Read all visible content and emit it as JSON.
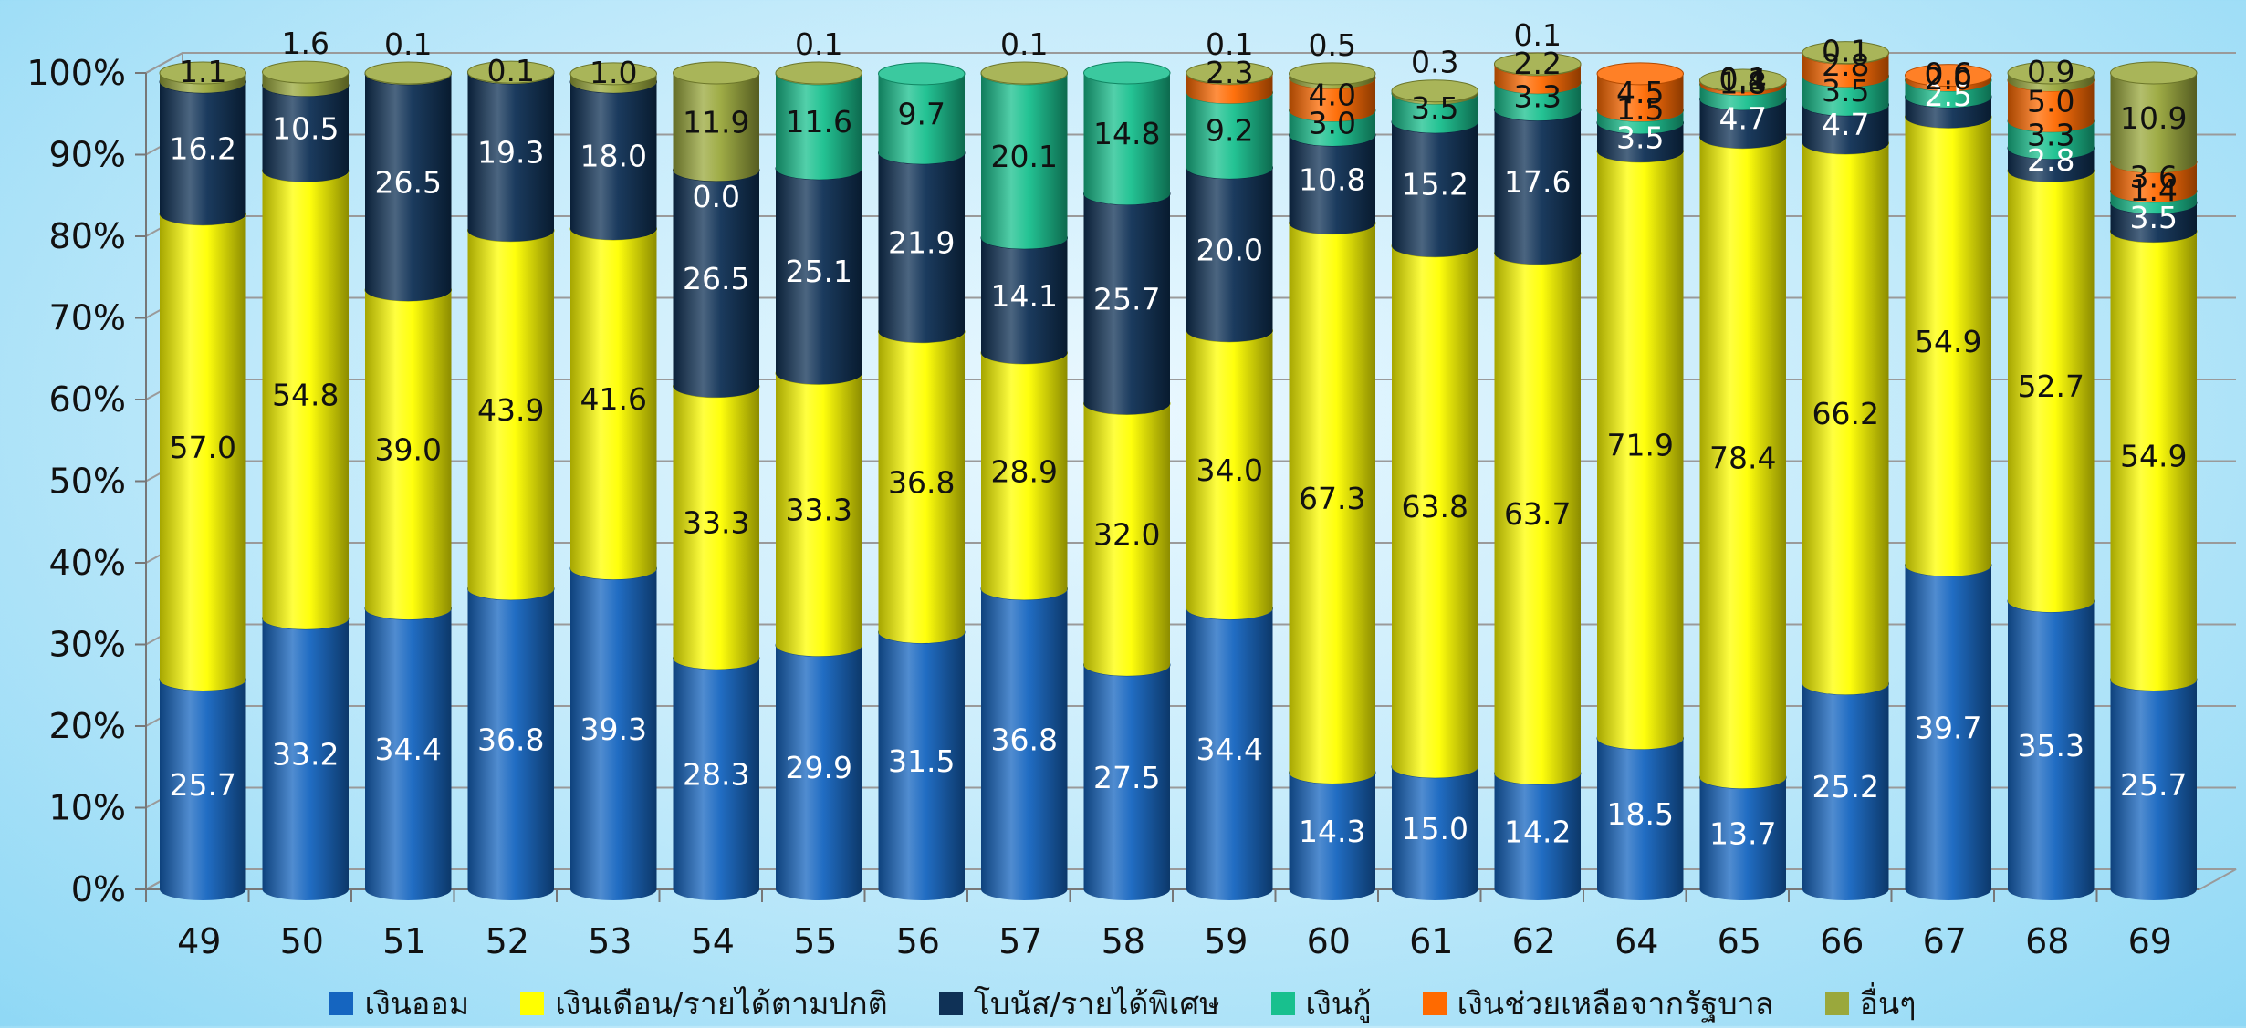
{
  "chart_data": {
    "type": "bar",
    "stacked": true,
    "title": "",
    "xlabel": "",
    "ylabel": "",
    "ylim": [
      0,
      100
    ],
    "y_ticks": [
      "0%",
      "10%",
      "20%",
      "30%",
      "40%",
      "50%",
      "60%",
      "70%",
      "80%",
      "90%",
      "100%"
    ],
    "categories": [
      "49",
      "50",
      "51",
      "52",
      "53",
      "54",
      "55",
      "56",
      "57",
      "58",
      "59",
      "60",
      "61",
      "62",
      "64",
      "65",
      "66",
      "67",
      "68",
      "69"
    ],
    "series": [
      {
        "name": "เงินออม",
        "color": "#1565c0",
        "label_color": "#ffffff",
        "values": [
          25.7,
          33.2,
          34.4,
          36.8,
          39.3,
          28.3,
          29.9,
          31.5,
          36.8,
          27.5,
          34.4,
          14.3,
          15.0,
          14.2,
          18.5,
          13.7,
          25.2,
          39.7,
          35.3,
          25.7
        ]
      },
      {
        "name": "เงินเดือน/รายได้ตามปกติ",
        "color": "#ffff00",
        "label_color": "#111111",
        "values": [
          57.0,
          54.8,
          39.0,
          43.9,
          41.6,
          33.3,
          33.3,
          36.8,
          28.9,
          32.0,
          34.0,
          67.3,
          63.8,
          63.7,
          71.9,
          78.4,
          66.2,
          54.9,
          52.7,
          54.9
        ]
      },
      {
        "name": "โบนัส/รายได้พิเศษ",
        "color": "#0f3156",
        "label_color": "#ffffff",
        "values": [
          16.2,
          10.5,
          26.5,
          19.3,
          18.0,
          26.5,
          25.1,
          21.9,
          14.1,
          25.7,
          20.0,
          10.8,
          15.2,
          17.6,
          3.5,
          4.7,
          4.7,
          2.5,
          2.8,
          3.5
        ]
      },
      {
        "name": "เงินกู้",
        "color": "#18c08e",
        "label_color": "#111111",
        "values": [
          0.0,
          0.0,
          0.0,
          0.0,
          0.0,
          0.0,
          11.6,
          9.7,
          20.1,
          14.8,
          9.2,
          3.0,
          3.5,
          3.3,
          1.5,
          1.8,
          3.5,
          2.0,
          3.3,
          1.4
        ]
      },
      {
        "name": "เงินช่วยเหลือจากรัฐบาล",
        "color": "#ff6a00",
        "label_color": "#111111",
        "values": [
          0.0,
          0.0,
          0.0,
          0.0,
          0.0,
          0.0,
          0.0,
          0.0,
          0.0,
          0.0,
          2.3,
          4.0,
          0.0,
          2.2,
          4.5,
          0.4,
          2.8,
          0.6,
          5.0,
          3.6
        ]
      },
      {
        "name": "อื่นๆ",
        "color": "#9aa83c",
        "label_color": "#111111",
        "values": [
          1.1,
          1.6,
          0.1,
          0.1,
          1.0,
          11.9,
          0.1,
          0.0,
          0.1,
          0.0,
          0.1,
          0.5,
          0.3,
          0.1,
          0.0,
          0.1,
          0.1,
          0.0,
          0.9,
          10.9
        ]
      }
    ],
    "data_labels": [
      {
        "cat": 0,
        "text": "25.7",
        "series": 0
      },
      {
        "cat": 0,
        "text": "57.0",
        "series": 1
      },
      {
        "cat": 0,
        "text": "16.2",
        "series": 2
      },
      {
        "cat": 0,
        "text": "1.1",
        "series": 5
      },
      {
        "cat": 1,
        "text": "33.2",
        "series": 0
      },
      {
        "cat": 1,
        "text": "54.8",
        "series": 1
      },
      {
        "cat": 1,
        "text": "10.5",
        "series": 2
      },
      {
        "cat": 1,
        "text": "1.6",
        "series": 5,
        "above": true
      },
      {
        "cat": 2,
        "text": "34.4",
        "series": 0
      },
      {
        "cat": 2,
        "text": "39.0",
        "series": 1
      },
      {
        "cat": 2,
        "text": "26.5",
        "series": 2
      },
      {
        "cat": 2,
        "text": "0.1",
        "series": 5,
        "above": true
      },
      {
        "cat": 3,
        "text": "36.8",
        "series": 0
      },
      {
        "cat": 3,
        "text": "43.9",
        "series": 1
      },
      {
        "cat": 3,
        "text": "19.3",
        "series": 2
      },
      {
        "cat": 3,
        "text": "0.1",
        "series": 5
      },
      {
        "cat": 4,
        "text": "39.3",
        "series": 0
      },
      {
        "cat": 4,
        "text": "41.6",
        "series": 1
      },
      {
        "cat": 4,
        "text": "18.0",
        "series": 2
      },
      {
        "cat": 4,
        "text": "1.0",
        "series": 5
      },
      {
        "cat": 5,
        "text": "28.3",
        "series": 0
      },
      {
        "cat": 5,
        "text": "33.3",
        "series": 1
      },
      {
        "cat": 5,
        "text": "26.5",
        "series": 2
      },
      {
        "cat": 5,
        "text": "0.0",
        "series": 2,
        "offset": 0.88
      },
      {
        "cat": 5,
        "text": "11.9",
        "series": 5
      },
      {
        "cat": 6,
        "text": "29.9",
        "series": 0
      },
      {
        "cat": 6,
        "text": "33.3",
        "series": 1
      },
      {
        "cat": 6,
        "text": "25.1",
        "series": 2
      },
      {
        "cat": 6,
        "text": "11.6",
        "series": 3
      },
      {
        "cat": 6,
        "text": "0.1",
        "series": 5,
        "above": true
      },
      {
        "cat": 7,
        "text": "31.5",
        "series": 0
      },
      {
        "cat": 7,
        "text": "36.8",
        "series": 1
      },
      {
        "cat": 7,
        "text": "21.9",
        "series": 2
      },
      {
        "cat": 7,
        "text": "9.7",
        "series": 3
      },
      {
        "cat": 8,
        "text": "36.8",
        "series": 0
      },
      {
        "cat": 8,
        "text": "28.9",
        "series": 1
      },
      {
        "cat": 8,
        "text": "14.1",
        "series": 2
      },
      {
        "cat": 8,
        "text": "20.1",
        "series": 3
      },
      {
        "cat": 8,
        "text": "0.1",
        "series": 5,
        "above": true
      },
      {
        "cat": 9,
        "text": "27.5",
        "series": 0
      },
      {
        "cat": 9,
        "text": "32.0",
        "series": 1
      },
      {
        "cat": 9,
        "text": "25.7",
        "series": 2
      },
      {
        "cat": 9,
        "text": "14.8",
        "series": 3
      },
      {
        "cat": 10,
        "text": "34.4",
        "series": 0
      },
      {
        "cat": 10,
        "text": "34.0",
        "series": 1
      },
      {
        "cat": 10,
        "text": "20.0",
        "series": 2
      },
      {
        "cat": 10,
        "text": "9.2",
        "series": 3
      },
      {
        "cat": 10,
        "text": "2.3",
        "series": 4
      },
      {
        "cat": 10,
        "text": "0.1",
        "series": 5,
        "above": true
      },
      {
        "cat": 11,
        "text": "14.3",
        "series": 0
      },
      {
        "cat": 11,
        "text": "67.3",
        "series": 1
      },
      {
        "cat": 11,
        "text": "10.8",
        "series": 2
      },
      {
        "cat": 11,
        "text": "3.0",
        "series": 3
      },
      {
        "cat": 11,
        "text": "4.0",
        "series": 4,
        "big": true
      },
      {
        "cat": 11,
        "text": "0.5",
        "series": 5,
        "above": true
      },
      {
        "cat": 12,
        "text": "15.0",
        "series": 0
      },
      {
        "cat": 12,
        "text": "63.8",
        "series": 1
      },
      {
        "cat": 12,
        "text": "15.2",
        "series": 2
      },
      {
        "cat": 12,
        "text": "3.5",
        "series": 3
      },
      {
        "cat": 12,
        "text": "0.3",
        "series": 5,
        "above": true
      },
      {
        "cat": 13,
        "text": "14.2",
        "series": 0
      },
      {
        "cat": 13,
        "text": "63.7",
        "series": 1
      },
      {
        "cat": 13,
        "text": "17.6",
        "series": 2
      },
      {
        "cat": 13,
        "text": "3.3",
        "series": 3
      },
      {
        "cat": 13,
        "text": "2.2",
        "series": 4
      },
      {
        "cat": 13,
        "text": "0.1",
        "series": 5,
        "above": true
      },
      {
        "cat": 14,
        "text": "18.5",
        "series": 0
      },
      {
        "cat": 14,
        "text": "71.9",
        "series": 1
      },
      {
        "cat": 14,
        "text": "3.5",
        "series": 2
      },
      {
        "cat": 14,
        "text": "1.5",
        "series": 3
      },
      {
        "cat": 14,
        "text": "4.5",
        "series": 4
      },
      {
        "cat": 15,
        "text": "13.7",
        "series": 0
      },
      {
        "cat": 15,
        "text": "78.4",
        "series": 1
      },
      {
        "cat": 15,
        "text": "4.7",
        "series": 2
      },
      {
        "cat": 15,
        "text": "1.8",
        "series": 3
      },
      {
        "cat": 15,
        "text": "0.4",
        "series": 4
      },
      {
        "cat": 15,
        "text": "0.1",
        "series": 5
      },
      {
        "cat": 16,
        "text": "25.2",
        "series": 0
      },
      {
        "cat": 16,
        "text": "66.2",
        "series": 1
      },
      {
        "cat": 16,
        "text": "4.7",
        "series": 2
      },
      {
        "cat": 16,
        "text": "3.5",
        "series": 3
      },
      {
        "cat": 16,
        "text": "2.8",
        "series": 4
      },
      {
        "cat": 16,
        "text": "0.1",
        "series": 5
      },
      {
        "cat": 17,
        "text": "39.7",
        "series": 0
      },
      {
        "cat": 17,
        "text": "54.9",
        "series": 1
      },
      {
        "cat": 17,
        "text": "2.5",
        "series": 2
      },
      {
        "cat": 17,
        "text": "2.0",
        "series": 3
      },
      {
        "cat": 17,
        "text": "0.6",
        "series": 4
      },
      {
        "cat": 18,
        "text": "35.3",
        "series": 0
      },
      {
        "cat": 18,
        "text": "52.7",
        "series": 1
      },
      {
        "cat": 18,
        "text": "2.8",
        "series": 2
      },
      {
        "cat": 18,
        "text": "3.3",
        "series": 3
      },
      {
        "cat": 18,
        "text": "5.0",
        "series": 4
      },
      {
        "cat": 18,
        "text": "0.9",
        "series": 5
      },
      {
        "cat": 19,
        "text": "25.7",
        "series": 0
      },
      {
        "cat": 19,
        "text": "54.9",
        "series": 1
      },
      {
        "cat": 19,
        "text": "3.5",
        "series": 2
      },
      {
        "cat": 19,
        "text": "1.4",
        "series": 3
      },
      {
        "cat": 19,
        "text": "3.6",
        "series": 4
      },
      {
        "cat": 19,
        "text": "10.9",
        "series": 5
      }
    ],
    "grid": true,
    "legend_position": "bottom"
  }
}
